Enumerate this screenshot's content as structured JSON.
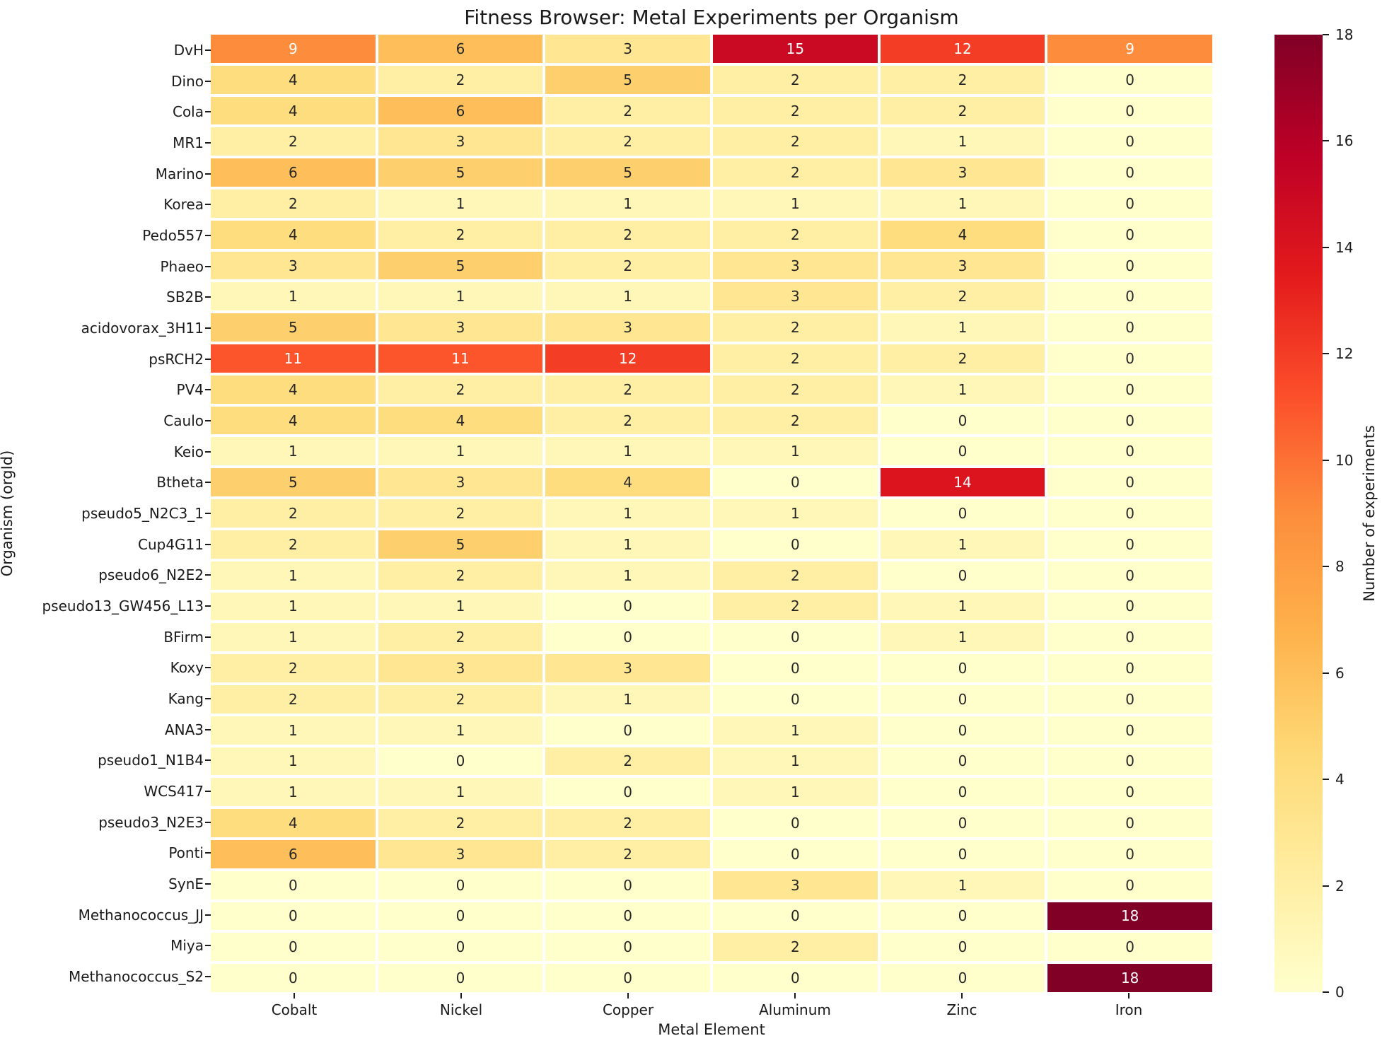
{
  "chart_data": {
    "type": "heatmap",
    "title": "Fitness Browser: Metal Experiments per Organism",
    "xlabel": "Metal Element",
    "ylabel": "Organism (orgId)",
    "columns": [
      "Cobalt",
      "Nickel",
      "Copper",
      "Aluminum",
      "Zinc",
      "Iron"
    ],
    "rows": [
      "DvH",
      "Dino",
      "Cola",
      "MR1",
      "Marino",
      "Korea",
      "Pedo557",
      "Phaeo",
      "SB2B",
      "acidovorax_3H11",
      "psRCH2",
      "PV4",
      "Caulo",
      "Keio",
      "Btheta",
      "pseudo5_N2C3_1",
      "Cup4G11",
      "pseudo6_N2E2",
      "pseudo13_GW456_L13",
      "BFirm",
      "Koxy",
      "Kang",
      "ANA3",
      "pseudo1_N1B4",
      "WCS417",
      "pseudo3_N2E3",
      "Ponti",
      "SynE",
      "Methanococcus_JJ",
      "Miya",
      "Methanococcus_S2"
    ],
    "values": [
      [
        9,
        6,
        3,
        15,
        12,
        9
      ],
      [
        4,
        2,
        5,
        2,
        2,
        0
      ],
      [
        4,
        6,
        2,
        2,
        2,
        0
      ],
      [
        2,
        3,
        2,
        2,
        1,
        0
      ],
      [
        6,
        5,
        5,
        2,
        3,
        0
      ],
      [
        2,
        1,
        1,
        1,
        1,
        0
      ],
      [
        4,
        2,
        2,
        2,
        4,
        0
      ],
      [
        3,
        5,
        2,
        3,
        3,
        0
      ],
      [
        1,
        1,
        1,
        3,
        2,
        0
      ],
      [
        5,
        3,
        3,
        2,
        1,
        0
      ],
      [
        11,
        11,
        12,
        2,
        2,
        0
      ],
      [
        4,
        2,
        2,
        2,
        1,
        0
      ],
      [
        4,
        4,
        2,
        2,
        0,
        0
      ],
      [
        1,
        1,
        1,
        1,
        0,
        0
      ],
      [
        5,
        3,
        4,
        0,
        14,
        0
      ],
      [
        2,
        2,
        1,
        1,
        0,
        0
      ],
      [
        2,
        5,
        1,
        0,
        1,
        0
      ],
      [
        1,
        2,
        1,
        2,
        0,
        0
      ],
      [
        1,
        1,
        0,
        2,
        1,
        0
      ],
      [
        1,
        2,
        0,
        0,
        1,
        0
      ],
      [
        2,
        3,
        3,
        0,
        0,
        0
      ],
      [
        2,
        2,
        1,
        0,
        0,
        0
      ],
      [
        1,
        1,
        0,
        1,
        0,
        0
      ],
      [
        1,
        0,
        2,
        1,
        0,
        0
      ],
      [
        1,
        1,
        0,
        1,
        0,
        0
      ],
      [
        4,
        2,
        2,
        0,
        0,
        0
      ],
      [
        6,
        3,
        2,
        0,
        0,
        0
      ],
      [
        0,
        0,
        0,
        3,
        1,
        0
      ],
      [
        0,
        0,
        0,
        0,
        0,
        18
      ],
      [
        0,
        0,
        0,
        2,
        0,
        0
      ],
      [
        0,
        0,
        0,
        0,
        0,
        18
      ]
    ],
    "grid": false,
    "annotations_shown": true,
    "colorbar": {
      "label": "Number of experiments",
      "min": 0,
      "max": 18,
      "ticks": [
        0,
        2,
        4,
        6,
        8,
        10,
        12,
        14,
        16,
        18
      ],
      "position": "right",
      "colormap": "YlOrRd",
      "colormap_stops": [
        "#ffffcc",
        "#ffeda0",
        "#fed976",
        "#feb24c",
        "#fd8d3c",
        "#fc4e2a",
        "#e31a1c",
        "#bd0026",
        "#800026"
      ]
    },
    "annotation_text_colors": {
      "dark": "#262626",
      "light": "#ffffff"
    }
  }
}
